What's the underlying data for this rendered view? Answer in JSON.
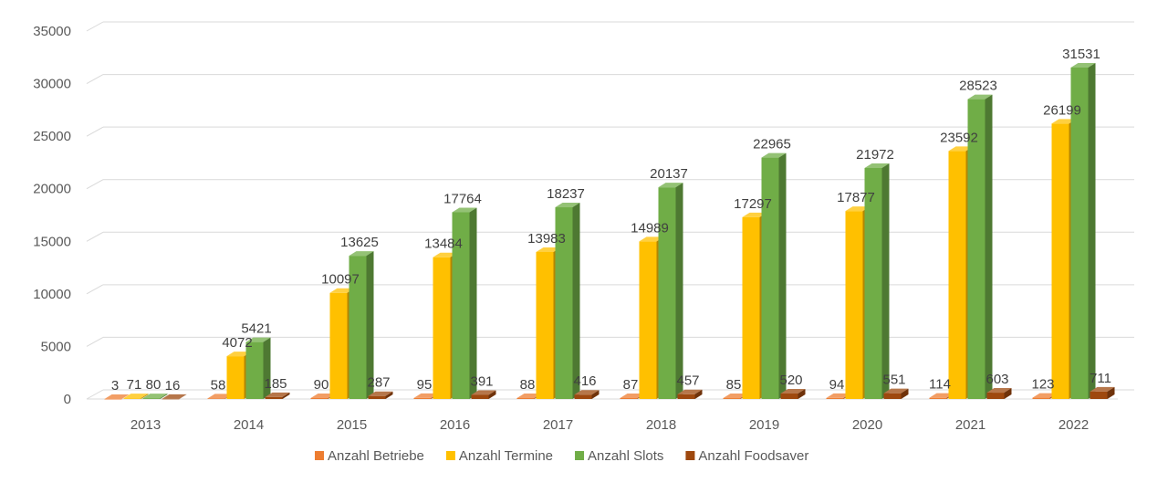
{
  "chart_data": {
    "type": "bar",
    "categories": [
      "2013",
      "2014",
      "2015",
      "2016",
      "2017",
      "2018",
      "2019",
      "2020",
      "2021",
      "2022"
    ],
    "series": [
      {
        "name": "Anzahl Betriebe",
        "color": "#ED7D31",
        "values": [
          3,
          58,
          90,
          95,
          88,
          87,
          85,
          94,
          114,
          123
        ]
      },
      {
        "name": "Anzahl Termine",
        "color": "#FFC000",
        "values": [
          71,
          4072,
          10097,
          13484,
          13983,
          14989,
          17297,
          17877,
          23592,
          26199
        ]
      },
      {
        "name": "Anzahl Slots",
        "color": "#70AD47",
        "values": [
          80,
          5421,
          13625,
          17764,
          18237,
          20137,
          22965,
          21972,
          28523,
          31531
        ]
      },
      {
        "name": "Anzahl Foodsaver",
        "color": "#9E480E",
        "values": [
          16,
          185,
          287,
          391,
          416,
          457,
          520,
          551,
          603,
          711
        ]
      }
    ],
    "y_ticks": [
      "0",
      "5000",
      "10000",
      "15000",
      "20000",
      "25000",
      "30000",
      "35000"
    ],
    "ylim": [
      0,
      35000
    ],
    "grid": true,
    "legend_position": "bottom"
  }
}
